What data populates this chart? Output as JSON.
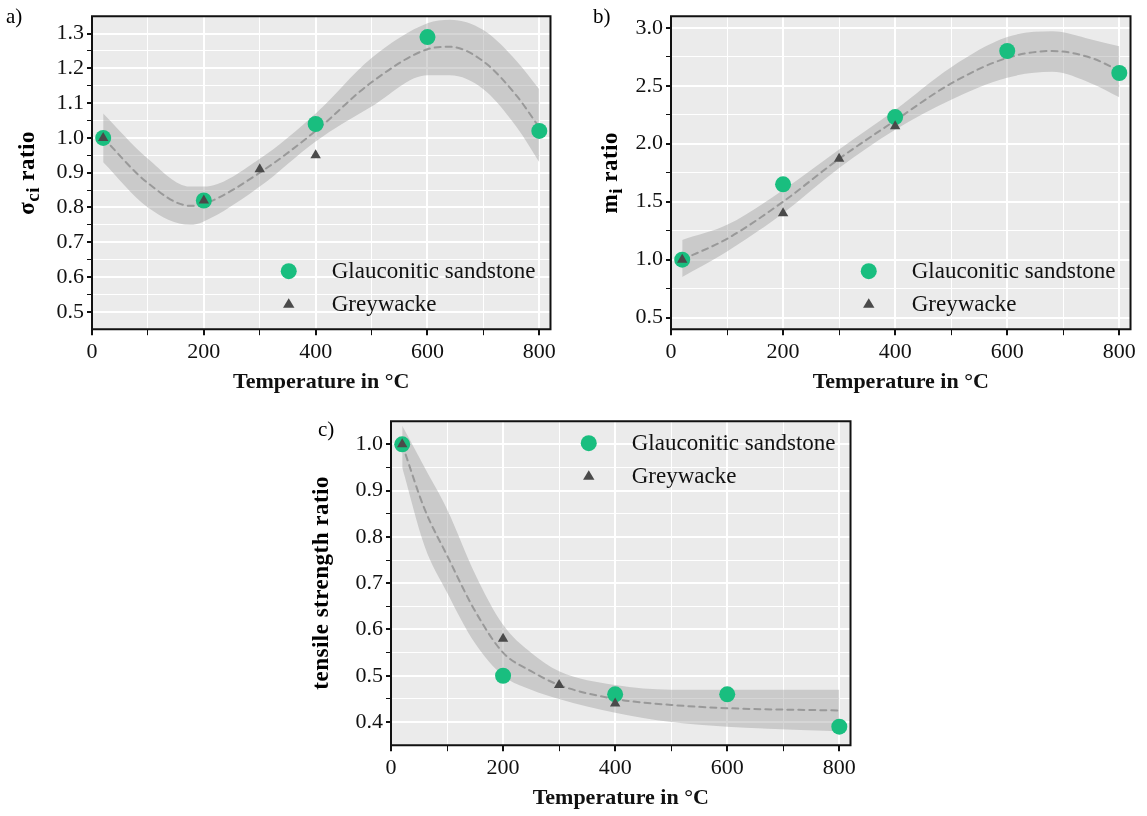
{
  "chart_data": [
    {
      "type": "scatter",
      "title": "a)",
      "xlabel": "Temperature in °C",
      "ylabel": "σ$_{ci}$ ratio",
      "xlim": [
        0,
        820
      ],
      "ylim": [
        0.45,
        1.35
      ],
      "xticks": [
        0,
        {
          "value": 100,
          "label": null
        },
        200,
        {
          "value": 300,
          "label": null
        },
        400,
        {
          "value": 500,
          "label": null
        },
        600,
        {
          "value": 700,
          "label": null
        },
        800
      ],
      "yticks": [
        {
          "value": 0.5,
          "label": "0.5"
        },
        {
          "value": 0.55,
          "label": null
        },
        {
          "value": 0.6,
          "label": "0.6"
        },
        {
          "value": 0.65,
          "label": null
        },
        {
          "value": 0.7,
          "label": "0.7"
        },
        {
          "value": 0.75,
          "label": null
        },
        {
          "value": 0.8,
          "label": "0.8"
        },
        {
          "value": 0.85,
          "label": null
        },
        {
          "value": 0.9,
          "label": "0.9"
        },
        {
          "value": 0.95,
          "label": null
        },
        {
          "value": 1.0,
          "label": "1.0"
        },
        {
          "value": 1.05,
          "label": null
        },
        {
          "value": 1.1,
          "label": "1.1"
        },
        {
          "value": 1.15,
          "label": null
        },
        {
          "value": 1.2,
          "label": "1.2"
        },
        {
          "value": 1.25,
          "label": null
        },
        {
          "value": 1.3,
          "label": "1.3"
        }
      ],
      "grid": true,
      "legend": "bottom right",
      "series": [
        {
          "type": "line",
          "color": "#999999",
          "line_style": "dashed",
          "marker": "none",
          "x": [
            20,
            100,
            175,
            200,
            300,
            400,
            500,
            600,
            640,
            700,
            760,
            800
          ],
          "values": [
            1.0,
            0.87,
            0.805,
            0.81,
            0.9,
            1.02,
            1.16,
            1.255,
            1.262,
            1.22,
            1.12,
            1.03
          ],
          "lower": [
            0.93,
            0.8,
            0.75,
            0.76,
            0.86,
            0.99,
            1.09,
            1.18,
            1.18,
            1.14,
            1.03,
            0.93
          ],
          "upper": [
            1.07,
            0.94,
            0.86,
            0.86,
            0.94,
            1.07,
            1.23,
            1.33,
            1.34,
            1.31,
            1.22,
            1.14
          ]
        },
        {
          "name": "Glauconitic sandstone",
          "color": "#19be7f",
          "marker": "circle",
          "x": [
            20,
            200,
            400,
            600,
            800
          ],
          "values": [
            1.0,
            0.82,
            1.04,
            1.29,
            1.02
          ]
        },
        {
          "name": "Greywacke",
          "color": "#4a4a4a",
          "marker": "triangle",
          "x": [
            20,
            200,
            300,
            400
          ],
          "values": [
            1.0,
            0.82,
            0.91,
            0.95
          ]
        }
      ]
    },
    {
      "type": "scatter",
      "title": "b)",
      "xlabel": "Temperature in °C",
      "ylabel": "m$_{i}$ ratio",
      "xlim": [
        0,
        820
      ],
      "ylim": [
        0.4,
        3.1
      ],
      "xticks": [
        0,
        {
          "value": 100,
          "label": null
        },
        200,
        {
          "value": 300,
          "label": null
        },
        400,
        {
          "value": 500,
          "label": null
        },
        600,
        {
          "value": 700,
          "label": null
        },
        800
      ],
      "yticks": [
        {
          "value": 0.5,
          "label": "0.5"
        },
        {
          "value": 0.75,
          "label": null
        },
        {
          "value": 1.0,
          "label": "1.0"
        },
        {
          "value": 1.25,
          "label": null
        },
        {
          "value": 1.5,
          "label": "1.5"
        },
        {
          "value": 1.75,
          "label": null
        },
        {
          "value": 2.0,
          "label": "2.0"
        },
        {
          "value": 2.25,
          "label": null
        },
        {
          "value": 2.5,
          "label": "2.5"
        },
        {
          "value": 2.75,
          "label": null
        },
        {
          "value": 3.0,
          "label": "3.0"
        }
      ],
      "grid": true,
      "legend": "bottom right",
      "series": [
        {
          "type": "line",
          "color": "#999999",
          "line_style": "dashed",
          "marker": "none",
          "x": [
            20,
            100,
            200,
            300,
            400,
            500,
            600,
            680,
            750,
            800
          ],
          "values": [
            1.0,
            1.18,
            1.5,
            1.87,
            2.2,
            2.52,
            2.74,
            2.8,
            2.74,
            2.63
          ],
          "lower": [
            0.85,
            1.07,
            1.4,
            1.79,
            2.12,
            2.38,
            2.57,
            2.62,
            2.52,
            2.4
          ],
          "upper": [
            1.17,
            1.3,
            1.6,
            1.95,
            2.29,
            2.66,
            2.92,
            2.97,
            2.9,
            2.84
          ]
        },
        {
          "name": "Glauconitic sandstone",
          "color": "#19be7f",
          "marker": "circle",
          "x": [
            20,
            200,
            400,
            600,
            800
          ],
          "values": [
            1.0,
            1.65,
            2.23,
            2.8,
            2.61
          ]
        },
        {
          "name": "Greywacke",
          "color": "#4a4a4a",
          "marker": "triangle",
          "x": [
            20,
            200,
            300,
            400
          ],
          "values": [
            1.0,
            1.4,
            1.87,
            2.15
          ]
        }
      ]
    },
    {
      "type": "scatter",
      "title": "c)",
      "xlabel": "Temperature in °C",
      "ylabel": "tensile strength ratio",
      "xlim": [
        0,
        820
      ],
      "ylim": [
        0.35,
        1.05
      ],
      "xticks": [
        0,
        {
          "value": 100,
          "label": null
        },
        200,
        {
          "value": 300,
          "label": null
        },
        400,
        {
          "value": 500,
          "label": null
        },
        600,
        {
          "value": 700,
          "label": null
        },
        800
      ],
      "yticks": [
        {
          "value": 0.4,
          "label": "0.4"
        },
        {
          "value": 0.45,
          "label": null
        },
        {
          "value": 0.5,
          "label": "0.5"
        },
        {
          "value": 0.55,
          "label": null
        },
        {
          "value": 0.6,
          "label": "0.6"
        },
        {
          "value": 0.65,
          "label": null
        },
        {
          "value": 0.7,
          "label": "0.7"
        },
        {
          "value": 0.75,
          "label": null
        },
        {
          "value": 0.8,
          "label": "0.8"
        },
        {
          "value": 0.85,
          "label": null
        },
        {
          "value": 0.9,
          "label": "0.9"
        },
        {
          "value": 0.95,
          "label": null
        },
        {
          "value": 1.0,
          "label": "1.0"
        }
      ],
      "grid": true,
      "legend": "top right",
      "series": [
        {
          "type": "line",
          "color": "#999999",
          "line_style": "dashed",
          "marker": "none",
          "x": [
            20,
            60,
            100,
            150,
            200,
            250,
            300,
            400,
            500,
            600,
            800
          ],
          "values": [
            1.0,
            0.86,
            0.76,
            0.64,
            0.55,
            0.51,
            0.48,
            0.45,
            0.437,
            0.43,
            0.425
          ],
          "lower": [
            0.95,
            0.78,
            0.68,
            0.57,
            0.5,
            0.47,
            0.45,
            0.42,
            0.4,
            0.39,
            0.38
          ],
          "upper": [
            1.04,
            0.95,
            0.86,
            0.72,
            0.61,
            0.55,
            0.51,
            0.48,
            0.47,
            0.47,
            0.47
          ]
        },
        {
          "name": "Glauconitic sandstone",
          "color": "#19be7f",
          "marker": "circle",
          "x": [
            20,
            200,
            400,
            600,
            800
          ],
          "values": [
            1.0,
            0.5,
            0.46,
            0.46,
            0.39
          ]
        },
        {
          "name": "Greywacke",
          "color": "#4a4a4a",
          "marker": "triangle",
          "x": [
            20,
            200,
            300,
            400
          ],
          "values": [
            1.0,
            0.58,
            0.48,
            0.44
          ]
        }
      ]
    }
  ]
}
